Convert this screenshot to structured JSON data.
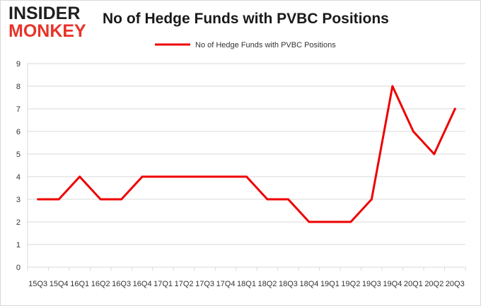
{
  "logo": {
    "line1": "INSIDER",
    "line2": "MONKEY"
  },
  "colors": {
    "series": "#ee0000",
    "grid": "#d9d9d9",
    "axis": "#d9d9d9",
    "text": "#333333",
    "logo_red": "#e8332a"
  },
  "chart_data": {
    "type": "line",
    "title": "No of Hedge Funds with PVBC Positions",
    "xlabel": "",
    "ylabel": "",
    "ylim": [
      0,
      9
    ],
    "yticks": [
      "0",
      "1",
      "2",
      "3",
      "4",
      "5",
      "6",
      "7",
      "8",
      "9"
    ],
    "grid": true,
    "legend": "top-center",
    "categories": [
      "15Q3",
      "15Q4",
      "16Q1",
      "16Q2",
      "16Q3",
      "16Q4",
      "17Q1",
      "17Q2",
      "17Q3",
      "17Q4",
      "18Q1",
      "18Q2",
      "18Q3",
      "18Q4",
      "19Q1",
      "19Q2",
      "19Q3",
      "19Q4",
      "20Q1",
      "20Q2",
      "20Q3"
    ],
    "series": [
      {
        "name": "No of Hedge Funds with PVBC Positions",
        "values": [
          3,
          3,
          4,
          3,
          3,
          4,
          4,
          4,
          4,
          4,
          4,
          3,
          3,
          2,
          2,
          2,
          3,
          8,
          6,
          5,
          7
        ]
      }
    ]
  }
}
